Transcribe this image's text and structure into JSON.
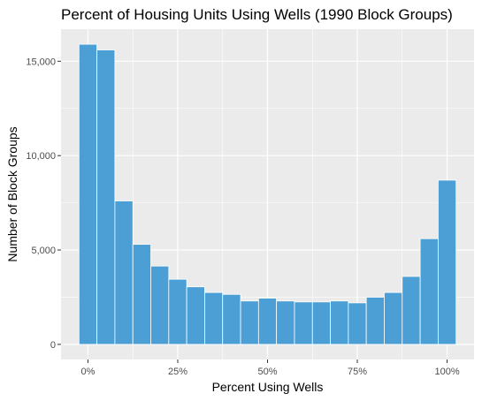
{
  "chart_data": {
    "type": "bar",
    "title": "Percent of Housing Units Using Wells (1990 Block Groups)",
    "xlabel": "Percent Using Wells",
    "ylabel": "Number of Block Groups",
    "x_ticks": [
      {
        "value": 0,
        "label": "0%"
      },
      {
        "value": 25,
        "label": "25%"
      },
      {
        "value": 50,
        "label": "50%"
      },
      {
        "value": 75,
        "label": "75%"
      },
      {
        "value": 100,
        "label": "100%"
      }
    ],
    "y_ticks": [
      {
        "value": 0,
        "label": "0"
      },
      {
        "value": 5000,
        "label": "5,000"
      },
      {
        "value": 10000,
        "label": "10,000"
      },
      {
        "value": 15000,
        "label": "15,000"
      }
    ],
    "xlim": [
      -7.5,
      107.5
    ],
    "ylim": [
      -800,
      16700
    ],
    "bin_width": 5,
    "bin_centers": [
      0,
      5,
      10,
      15,
      20,
      25,
      30,
      35,
      40,
      45,
      50,
      55,
      60,
      65,
      70,
      75,
      80,
      85,
      90,
      95,
      100
    ],
    "values": [
      15900,
      15600,
      7600,
      5300,
      4150,
      3450,
      3050,
      2750,
      2650,
      2300,
      2450,
      2300,
      2250,
      2250,
      2300,
      2200,
      2500,
      2750,
      3600,
      5600,
      8700
    ],
    "bar_color": "#4c9fd4",
    "bar_outline": "#ffffff",
    "panel_background": "#ebebeb",
    "grid": true
  }
}
